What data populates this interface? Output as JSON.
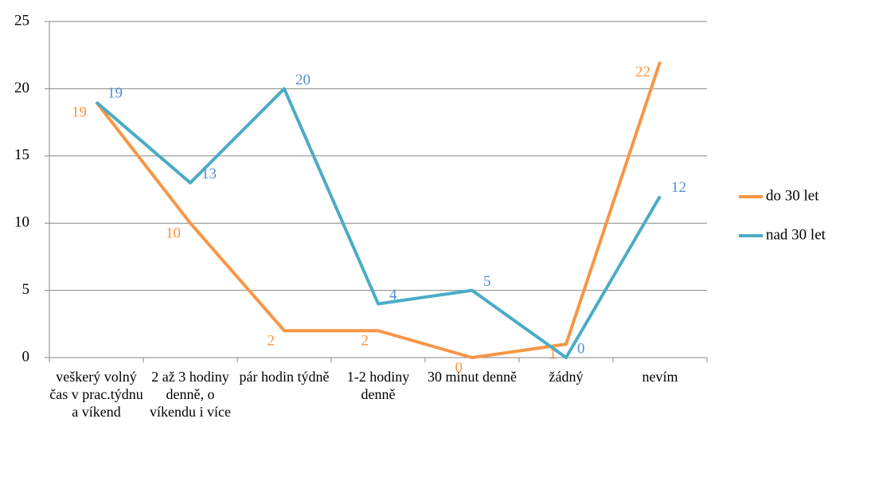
{
  "chart_data": {
    "type": "line",
    "categories": [
      "veškerý volný čas v prac.týdnu a víkend",
      "2 až 3 hodiny denně, o víkendu i více",
      "pár hodin týdně",
      "1-2 hodiny denně",
      "30 minut denně",
      "žádný",
      "nevím"
    ],
    "series": [
      {
        "name": "do 30 let",
        "color": "#f79646",
        "label_color": "#f79646",
        "values": [
          19,
          10,
          2,
          2,
          0,
          1,
          22
        ]
      },
      {
        "name": "nad 30 let",
        "color": "#4bacc6",
        "label_color": "#558ed5",
        "values": [
          19,
          13,
          20,
          4,
          5,
          0,
          12
        ]
      }
    ],
    "ylim": [
      0,
      25
    ],
    "yticks": [
      0,
      5,
      10,
      15,
      20,
      25
    ],
    "grid": true,
    "legend": "right"
  }
}
